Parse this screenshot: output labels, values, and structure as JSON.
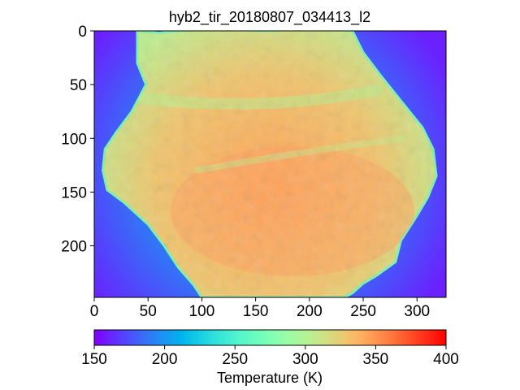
{
  "chart_data": {
    "type": "heatmap",
    "title": "hyb2_tir_20180807_034413_l2",
    "xlabel": "",
    "ylabel": "",
    "xlim": [
      0,
      327
    ],
    "ylim": [
      248,
      0
    ],
    "x_ticks": [
      "0",
      "50",
      "100",
      "150",
      "200",
      "250",
      "300"
    ],
    "y_ticks": [
      "0",
      "50",
      "100",
      "150",
      "200"
    ],
    "colorbar": {
      "label": "Temperature (K)",
      "range": [
        150,
        400
      ],
      "ticks": [
        "150",
        "200",
        "250",
        "300",
        "350",
        "400"
      ],
      "orientation": "horizontal",
      "placement": "bottom",
      "colormap": "rainbow"
    },
    "description_values": {
      "background_edge_temperature_K": 160,
      "background_center_temperature_K": 205,
      "body_limb_temperature_K": 280,
      "body_interior_temperature_K": 330,
      "body_warm_region_temperature_K": 345
    }
  }
}
